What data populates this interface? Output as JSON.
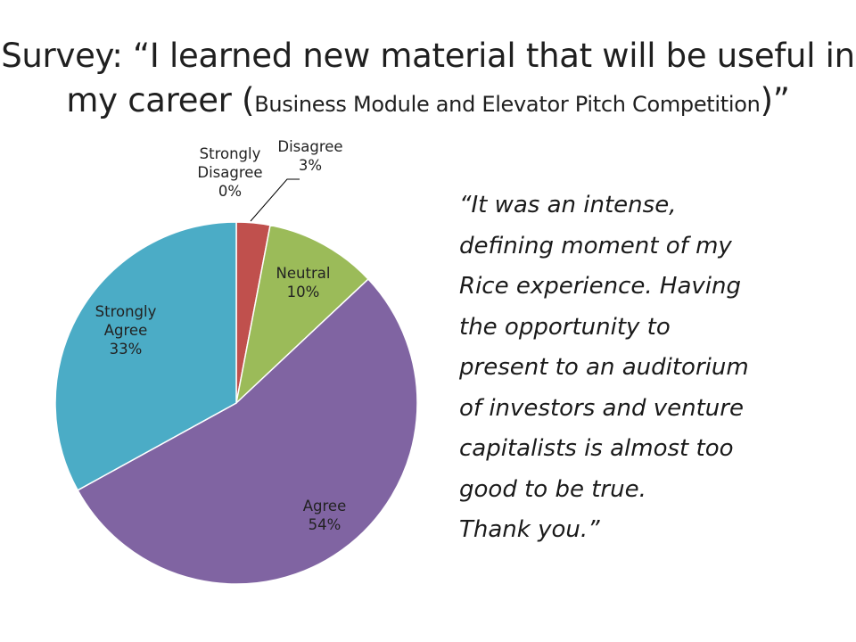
{
  "title": {
    "line1": "Survey: “I learned new material that will be useful in",
    "line2_start": "my career (",
    "line2_small": "Business Module and Elevator Pitch Competition",
    "line2_end": ")”"
  },
  "quote": {
    "lines": [
      "“It was an intense,",
      "defining moment of my",
      "Rice experience. Having",
      "the opportunity to",
      "present to an auditorium",
      "of investors and venture",
      "capitalists is almost too",
      "good to be true.",
      "Thank you.”"
    ]
  },
  "chart_data": {
    "type": "pie",
    "start_angle_deg": 0,
    "direction": "clockwise",
    "slices": [
      {
        "label_lines": [
          "Strongly",
          "Disagree"
        ],
        "pct_label": "0%",
        "value": 0,
        "color": "#4f81bd"
      },
      {
        "label_lines": [
          "Disagree"
        ],
        "pct_label": "3%",
        "value": 3,
        "color": "#c0504d"
      },
      {
        "label_lines": [
          "Neutral"
        ],
        "pct_label": "10%",
        "value": 10,
        "color": "#9bbb59"
      },
      {
        "label_lines": [
          "Agree"
        ],
        "pct_label": "54%",
        "value": 54,
        "color": "#8064a2"
      },
      {
        "label_lines": [
          "Strongly",
          "Agree"
        ],
        "pct_label": "33%",
        "value": 33,
        "color": "#4bacc6"
      }
    ],
    "legend": "none"
  }
}
